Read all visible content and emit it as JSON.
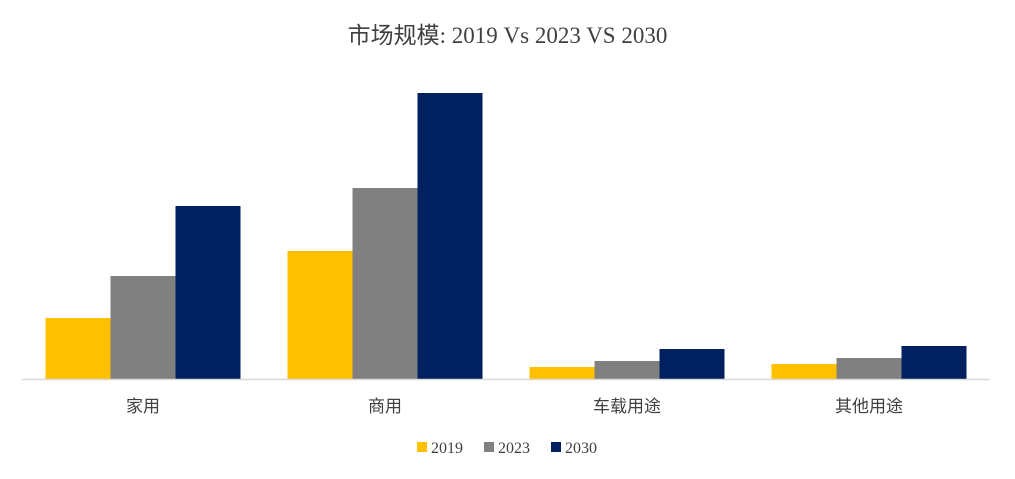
{
  "chart_data": {
    "type": "bar",
    "title": "市场规模: 2019 Vs 2023 VS 2030",
    "categories": [
      "家用",
      "商用",
      "车载用途",
      "其他用途"
    ],
    "series": [
      {
        "name": "2019",
        "color": "#FFC000",
        "values": [
          61,
          128,
          12,
          15
        ]
      },
      {
        "name": "2023",
        "color": "#808080",
        "values": [
          103,
          191,
          18,
          21
        ]
      },
      {
        "name": "2030",
        "color": "#002060",
        "values": [
          173,
          286,
          30,
          33
        ]
      }
    ],
    "ylim": [
      0,
      300
    ],
    "grid": false,
    "y_axis_shown": false,
    "legend": "bottom",
    "xlabel": "",
    "ylabel": ""
  }
}
